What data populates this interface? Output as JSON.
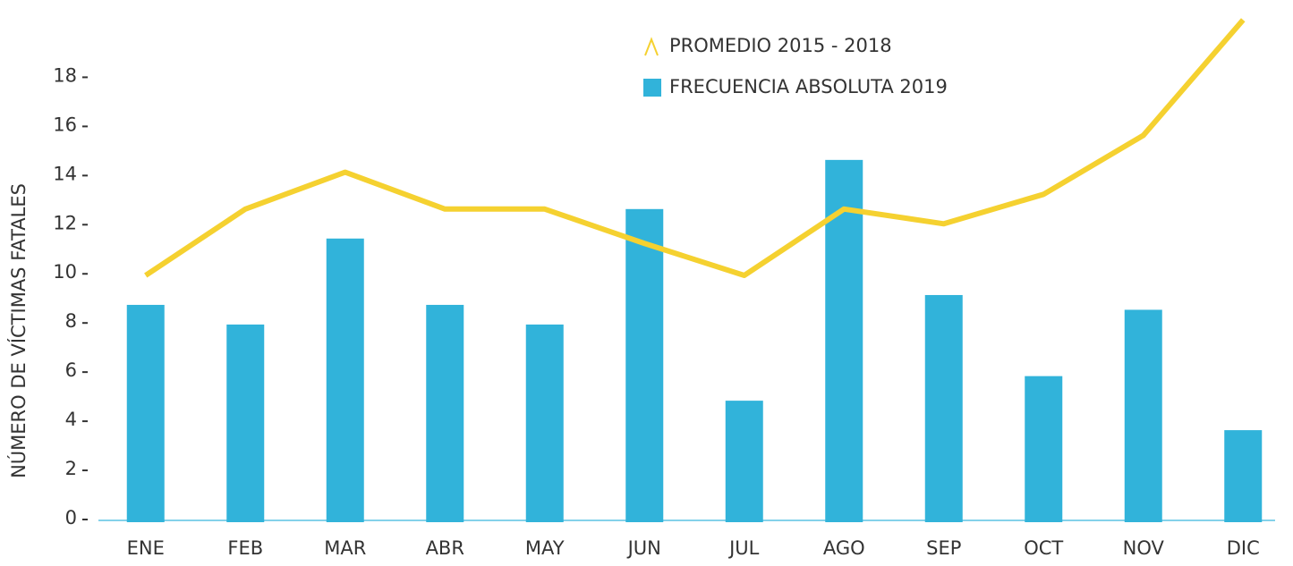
{
  "chart_data": {
    "type": "bar_line",
    "y_label": "NÚMERO DE VÍCTIMAS FATALES",
    "categories": [
      "ENE",
      "FEB",
      "MAR",
      "ABR",
      "MAY",
      "JUN",
      "JUL",
      "AGO",
      "SEP",
      "OCT",
      "NOV",
      "DIC"
    ],
    "series": [
      {
        "name": "PROMEDIO 2015 - 2018",
        "type": "line",
        "color": "#f5d130",
        "values": [
          9.9,
          12.6,
          14.1,
          12.6,
          12.6,
          11.2,
          9.9,
          12.6,
          12.0,
          13.2,
          15.6,
          20.3
        ]
      },
      {
        "name": "FRECUENCIA ABSOLUTA 2019",
        "type": "bar",
        "color": "#31b3da",
        "values": [
          8.7,
          7.9,
          11.4,
          8.7,
          7.9,
          12.6,
          4.8,
          14.6,
          9.1,
          5.8,
          8.5,
          3.6
        ]
      }
    ],
    "ylim": [
      0,
      21
    ],
    "yticks": [
      0,
      2,
      4,
      6,
      8,
      10,
      12,
      14,
      16,
      18
    ],
    "grid": false
  }
}
